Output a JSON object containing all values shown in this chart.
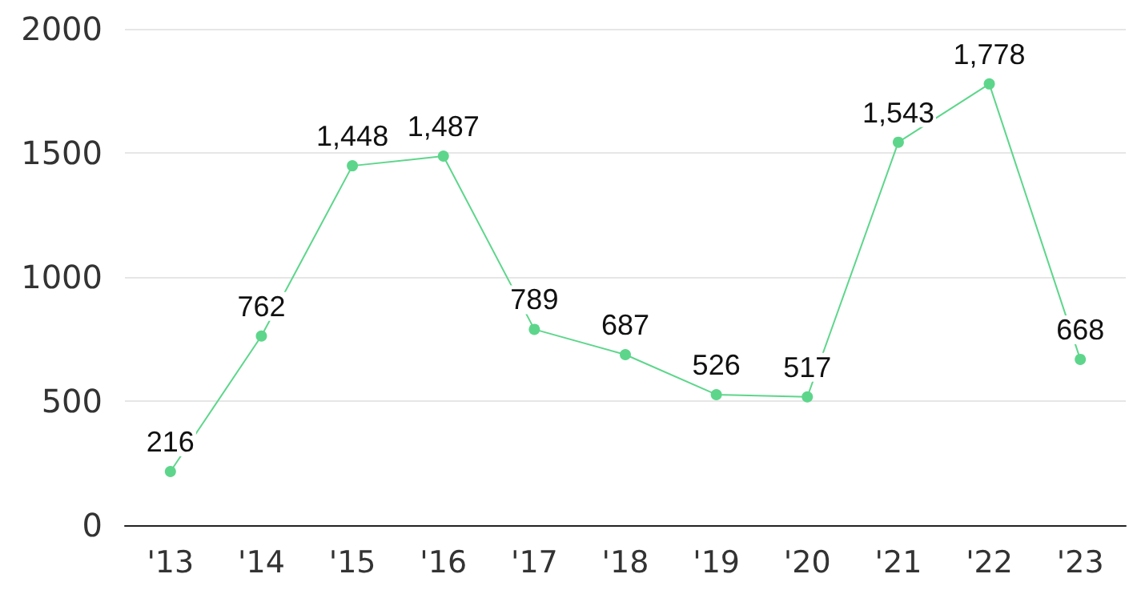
{
  "chart_data": {
    "type": "line",
    "categories": [
      "'13",
      "'14",
      "'15",
      "'16",
      "'17",
      "'18",
      "'19",
      "'20",
      "'21",
      "'22",
      "'23"
    ],
    "series": [
      {
        "color": "#5dd68b",
        "values": [
          216,
          762,
          1448,
          1487,
          789,
          687,
          526,
          517,
          1543,
          1778,
          668
        ],
        "value_labels": [
          "216",
          "762",
          "1,448",
          "1,487",
          "789",
          "687",
          "526",
          "517",
          "1,543",
          "1,778",
          "668"
        ]
      }
    ],
    "ylim": [
      0,
      2000
    ],
    "yticks": [
      0,
      500,
      1000,
      1500,
      2000
    ],
    "grid": "y",
    "marker": "circle",
    "line_style": "solid"
  }
}
